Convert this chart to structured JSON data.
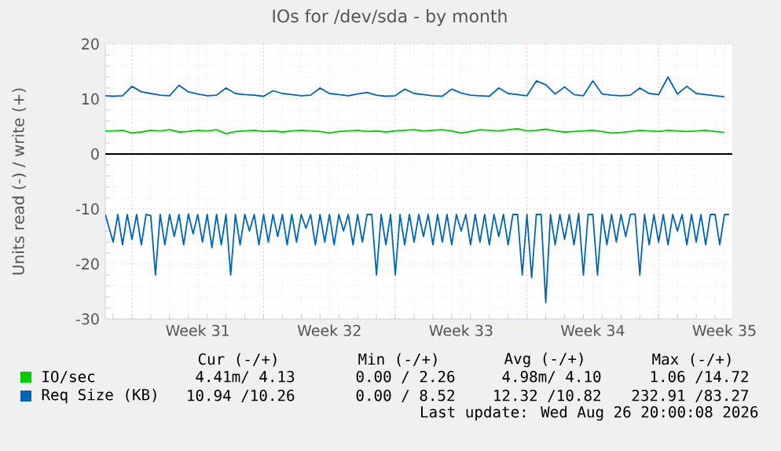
{
  "chart_data": {
    "type": "line",
    "title": "IOs for /dev/sda - by month",
    "ylabel": "Units read (-) / write (+)",
    "xlim": [
      "2026-07-25T14:00",
      "2026-08-27T22:00"
    ],
    "xticks": [
      {
        "value": "2026-07-27T00:00",
        "label": null
      },
      {
        "value": "2026-07-30T12:00",
        "label": "Week 31"
      },
      {
        "value": "2026-08-03T00:00",
        "label": null
      },
      {
        "value": "2026-08-06T12:00",
        "label": "Week 32"
      },
      {
        "value": "2026-08-10T00:00",
        "label": null
      },
      {
        "value": "2026-08-13T12:00",
        "label": "Week 33"
      },
      {
        "value": "2026-08-17T00:00",
        "label": null
      },
      {
        "value": "2026-08-20T12:00",
        "label": "Week 34"
      },
      {
        "value": "2026-08-24T00:00",
        "label": null
      },
      {
        "value": "2026-08-27T12:00",
        "label": "Week 35"
      }
    ],
    "ylim": [
      -30,
      20
    ],
    "yticks": [
      -30,
      -20,
      -10,
      0,
      10,
      20
    ],
    "grid": true,
    "legend": "bottom",
    "line_style": "solid",
    "ref_lines": [
      {
        "axis": "y",
        "value": 0,
        "color": "#000000"
      }
    ],
    "x": [
      "2026-07-25T14:00",
      "2026-07-26T00:00",
      "2026-07-26T12:00",
      "2026-07-27T00:00",
      "2026-07-27T12:00",
      "2026-07-28T00:00",
      "2026-07-28T12:00",
      "2026-07-29T00:00",
      "2026-07-29T12:00",
      "2026-07-30T00:00",
      "2026-07-30T12:00",
      "2026-07-31T00:00",
      "2026-07-31T12:00",
      "2026-08-01T00:00",
      "2026-08-01T12:00",
      "2026-08-02T00:00",
      "2026-08-02T12:00",
      "2026-08-03T00:00",
      "2026-08-03T12:00",
      "2026-08-04T00:00",
      "2026-08-04T12:00",
      "2026-08-05T00:00",
      "2026-08-05T12:00",
      "2026-08-06T00:00",
      "2026-08-06T12:00",
      "2026-08-07T00:00",
      "2026-08-07T12:00",
      "2026-08-08T00:00",
      "2026-08-08T12:00",
      "2026-08-09T00:00",
      "2026-08-09T12:00",
      "2026-08-10T00:00",
      "2026-08-10T12:00",
      "2026-08-11T00:00",
      "2026-08-11T12:00",
      "2026-08-12T00:00",
      "2026-08-12T12:00",
      "2026-08-13T00:00",
      "2026-08-13T12:00",
      "2026-08-14T00:00",
      "2026-08-14T12:00",
      "2026-08-15T00:00",
      "2026-08-15T12:00",
      "2026-08-16T00:00",
      "2026-08-16T12:00",
      "2026-08-17T00:00",
      "2026-08-17T12:00",
      "2026-08-18T00:00",
      "2026-08-18T12:00",
      "2026-08-19T00:00",
      "2026-08-19T12:00",
      "2026-08-20T00:00",
      "2026-08-20T12:00",
      "2026-08-21T00:00",
      "2026-08-21T12:00",
      "2026-08-22T00:00",
      "2026-08-22T12:00",
      "2026-08-23T00:00",
      "2026-08-23T12:00",
      "2026-08-24T00:00",
      "2026-08-24T12:00",
      "2026-08-25T00:00",
      "2026-08-25T12:00",
      "2026-08-26T00:00",
      "2026-08-26T12:00",
      "2026-08-27T00:00",
      "2026-08-27T12:00"
    ],
    "series": [
      {
        "name": "IO/sec",
        "color": "#00cc00",
        "values": [
          4.2,
          4.2,
          4.3,
          3.8,
          4.0,
          4.3,
          4.2,
          4.4,
          4.0,
          4.1,
          4.3,
          4.2,
          4.4,
          3.7,
          4.1,
          4.2,
          4.3,
          4.1,
          4.2,
          4.0,
          4.2,
          4.3,
          4.2,
          4.1,
          3.8,
          4.1,
          4.2,
          4.3,
          4.1,
          4.2,
          4.0,
          4.2,
          4.3,
          4.4,
          4.2,
          4.3,
          4.4,
          4.2,
          3.8,
          4.1,
          4.4,
          4.3,
          4.2,
          4.4,
          4.6,
          4.2,
          4.3,
          4.5,
          4.2,
          4.0,
          4.1,
          4.2,
          4.3,
          4.1,
          3.8,
          3.9,
          4.1,
          4.3,
          4.2,
          4.1,
          4.3,
          4.2,
          4.1,
          4.2,
          4.3,
          4.1,
          3.9
        ]
      },
      {
        "name": "Req Size (KB)",
        "color": "#0066b3",
        "values": [
          10.6,
          10.5,
          10.6,
          12.3,
          11.3,
          11.0,
          10.7,
          10.6,
          12.5,
          11.3,
          10.9,
          10.6,
          10.7,
          12.0,
          11.0,
          10.8,
          10.7,
          10.5,
          11.5,
          11.0,
          10.8,
          10.6,
          10.7,
          12.0,
          11.0,
          10.8,
          10.6,
          10.9,
          11.2,
          10.7,
          10.5,
          10.6,
          11.8,
          11.0,
          10.8,
          10.6,
          10.5,
          11.8,
          11.1,
          10.7,
          10.6,
          10.5,
          12.0,
          11.0,
          10.8,
          10.6,
          13.3,
          12.6,
          10.9,
          12.2,
          10.8,
          10.6,
          13.3,
          10.9,
          10.7,
          10.6,
          10.7,
          12.0,
          11.0,
          10.8,
          14.0,
          10.9,
          12.3,
          11.0,
          10.8,
          10.6,
          10.4
        ]
      },
      {
        "color": "#0066b3",
        "x": [
          "2026-07-25T14:00",
          "2026-07-26T00:00",
          "2026-07-26T06:00",
          "2026-07-26T12:00",
          "2026-07-26T18:00",
          "2026-07-27T00:00",
          "2026-07-27T06:00",
          "2026-07-27T12:00",
          "2026-07-27T18:00",
          "2026-07-28T00:00",
          "2026-07-28T06:00",
          "2026-07-28T12:00",
          "2026-07-28T18:00",
          "2026-07-29T00:00",
          "2026-07-29T06:00",
          "2026-07-29T12:00",
          "2026-07-29T18:00",
          "2026-07-30T00:00",
          "2026-07-30T06:00",
          "2026-07-30T12:00",
          "2026-07-30T18:00",
          "2026-07-31T00:00",
          "2026-07-31T06:00",
          "2026-07-31T12:00",
          "2026-07-31T18:00",
          "2026-08-01T00:00",
          "2026-08-01T06:00",
          "2026-08-01T12:00",
          "2026-08-01T18:00",
          "2026-08-02T00:00",
          "2026-08-02T06:00",
          "2026-08-02T12:00",
          "2026-08-02T18:00",
          "2026-08-03T00:00",
          "2026-08-03T06:00",
          "2026-08-03T12:00",
          "2026-08-03T18:00",
          "2026-08-04T00:00",
          "2026-08-04T06:00",
          "2026-08-04T12:00",
          "2026-08-04T18:00",
          "2026-08-05T00:00",
          "2026-08-05T06:00",
          "2026-08-05T12:00",
          "2026-08-05T18:00",
          "2026-08-06T00:00",
          "2026-08-06T06:00",
          "2026-08-06T12:00",
          "2026-08-06T18:00",
          "2026-08-07T00:00",
          "2026-08-07T06:00",
          "2026-08-07T12:00",
          "2026-08-07T18:00",
          "2026-08-08T00:00",
          "2026-08-08T06:00",
          "2026-08-08T12:00",
          "2026-08-08T18:00",
          "2026-08-09T00:00",
          "2026-08-09T06:00",
          "2026-08-09T12:00",
          "2026-08-09T18:00",
          "2026-08-10T00:00",
          "2026-08-10T06:00",
          "2026-08-10T12:00",
          "2026-08-10T18:00",
          "2026-08-11T00:00",
          "2026-08-11T06:00",
          "2026-08-11T12:00",
          "2026-08-11T18:00",
          "2026-08-12T00:00",
          "2026-08-12T06:00",
          "2026-08-12T12:00",
          "2026-08-12T18:00",
          "2026-08-13T00:00",
          "2026-08-13T06:00",
          "2026-08-13T12:00",
          "2026-08-13T18:00",
          "2026-08-14T00:00",
          "2026-08-14T06:00",
          "2026-08-14T12:00",
          "2026-08-14T18:00",
          "2026-08-15T00:00",
          "2026-08-15T06:00",
          "2026-08-15T12:00",
          "2026-08-15T18:00",
          "2026-08-16T00:00",
          "2026-08-16T06:00",
          "2026-08-16T12:00",
          "2026-08-16T18:00",
          "2026-08-17T00:00",
          "2026-08-17T06:00",
          "2026-08-17T12:00",
          "2026-08-17T18:00",
          "2026-08-18T00:00",
          "2026-08-18T06:00",
          "2026-08-18T12:00",
          "2026-08-18T18:00",
          "2026-08-19T00:00",
          "2026-08-19T06:00",
          "2026-08-19T12:00",
          "2026-08-19T18:00",
          "2026-08-20T00:00",
          "2026-08-20T06:00",
          "2026-08-20T12:00",
          "2026-08-20T18:00",
          "2026-08-21T00:00",
          "2026-08-21T06:00",
          "2026-08-21T12:00",
          "2026-08-21T18:00",
          "2026-08-22T00:00",
          "2026-08-22T06:00",
          "2026-08-22T12:00",
          "2026-08-22T18:00",
          "2026-08-23T00:00",
          "2026-08-23T06:00",
          "2026-08-23T12:00",
          "2026-08-23T18:00",
          "2026-08-24T00:00",
          "2026-08-24T06:00",
          "2026-08-24T12:00",
          "2026-08-24T18:00",
          "2026-08-25T00:00",
          "2026-08-25T06:00",
          "2026-08-25T12:00",
          "2026-08-25T18:00",
          "2026-08-26T00:00",
          "2026-08-26T06:00",
          "2026-08-26T12:00",
          "2026-08-26T18:00",
          "2026-08-27T00:00",
          "2026-08-27T06:00",
          "2026-08-27T12:00",
          "2026-08-27T18:00"
        ],
        "values": [
          -11.0,
          -16.0,
          -11.0,
          -16.5,
          -11.0,
          -15.5,
          -11.0,
          -16.5,
          -11.0,
          -11.2,
          -22.0,
          -11.0,
          -16.5,
          -11.0,
          -15.0,
          -11.0,
          -16.5,
          -10.9,
          -14.5,
          -11.0,
          -16.0,
          -11.0,
          -17.0,
          -11.0,
          -16.5,
          -11.0,
          -22.0,
          -11.0,
          -16.5,
          -11.0,
          -14.0,
          -11.0,
          -16.5,
          -11.0,
          -16.0,
          -11.0,
          -15.0,
          -11.0,
          -16.5,
          -11.0,
          -16.0,
          -11.0,
          -13.5,
          -11.0,
          -16.5,
          -11.0,
          -16.0,
          -11.0,
          -16.5,
          -11.0,
          -14.0,
          -11.0,
          -16.5,
          -11.0,
          -16.0,
          -11.0,
          -11.0,
          -22.0,
          -11.0,
          -16.5,
          -11.0,
          -22.0,
          -11.0,
          -16.5,
          -11.0,
          -16.0,
          -11.0,
          -15.0,
          -11.0,
          -16.5,
          -11.0,
          -16.0,
          -11.0,
          -16.5,
          -11.0,
          -14.0,
          -11.0,
          -16.5,
          -11.0,
          -16.0,
          -11.0,
          -16.5,
          -11.0,
          -15.0,
          -11.0,
          -16.5,
          -11.0,
          -11.0,
          -22.0,
          -11.0,
          -22.5,
          -11.0,
          -11.0,
          -27.0,
          -11.0,
          -16.5,
          -11.0,
          -15.5,
          -11.0,
          -16.5,
          -10.8,
          -22.0,
          -11.0,
          -11.0,
          -22.0,
          -11.0,
          -16.5,
          -11.0,
          -16.0,
          -11.0,
          -15.0,
          -11.0,
          -10.9,
          -22.0,
          -11.0,
          -16.5,
          -11.0,
          -16.0,
          -11.0,
          -16.5,
          -11.0,
          -14.0,
          -11.0,
          -16.5,
          -11.0,
          -16.0,
          -11.0,
          -16.5,
          -11.0,
          -11.0,
          -16.5,
          -11.0,
          -11.0
        ]
      }
    ],
    "annotations": [
      "Cur (-/+)",
      "Min (-/+)",
      "Avg (-/+)",
      "Max (-/+)",
      "4.41m/ 4.13",
      "0.00 / 2.26",
      "4.98m/ 4.10",
      "1.06 /14.72",
      "10.94 /10.26",
      "0.00 / 8.52",
      "12.32 /10.82",
      "232.91 /83.27",
      "Last update: Wed Aug 26 20:00:08 2026"
    ]
  }
}
